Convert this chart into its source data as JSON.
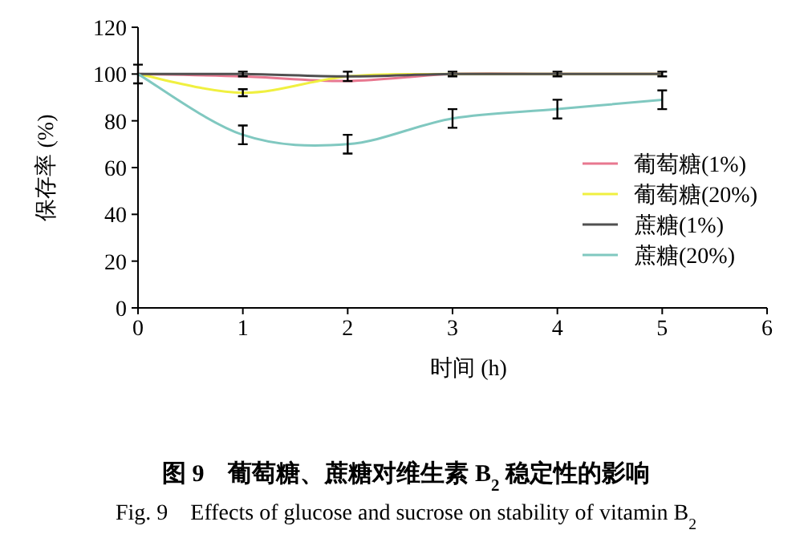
{
  "chart_data": {
    "type": "line",
    "title": "图 9　葡萄糖、蔗糖对维生素 B$_{2}$ 稳定性的影响",
    "subtitle": "Fig. 9　Effects of glucose and sucrose on stability of vitamin B$_{2}$",
    "xlabel": "时间 (h)",
    "ylabel": "保存率 (%)",
    "x": [
      0,
      1,
      2,
      3,
      4,
      5
    ],
    "series": [
      {
        "name": "葡萄糖(1%)",
        "color": "#e87890",
        "values": [
          100,
          99,
          97,
          100,
          100,
          100
        ]
      },
      {
        "name": "葡萄糖(20%)",
        "color": "#f0f040",
        "values": [
          100,
          92,
          99,
          100,
          100,
          100
        ],
        "errors": [
          null,
          1.5,
          null,
          null,
          null,
          null
        ]
      },
      {
        "name": "蔗糖(1%)",
        "color": "#505050",
        "values": [
          100,
          100,
          99,
          100,
          100,
          100
        ],
        "errors": [
          null,
          1,
          2,
          1,
          1,
          1
        ]
      },
      {
        "name": "蔗糖(20%)",
        "color": "#80c8c0",
        "values": [
          100,
          74,
          70,
          81,
          85,
          89
        ],
        "errors": [
          4,
          4,
          4,
          4,
          4,
          4
        ]
      }
    ],
    "xlim": [
      0,
      6
    ],
    "xticks": [
      0,
      1,
      2,
      3,
      4,
      5,
      6
    ],
    "ylim": [
      0,
      120
    ],
    "yticks": [
      0,
      20,
      40,
      60,
      80,
      100,
      120
    ],
    "grid": false,
    "legend": "right",
    "marker": "none",
    "line_style": "solid"
  }
}
